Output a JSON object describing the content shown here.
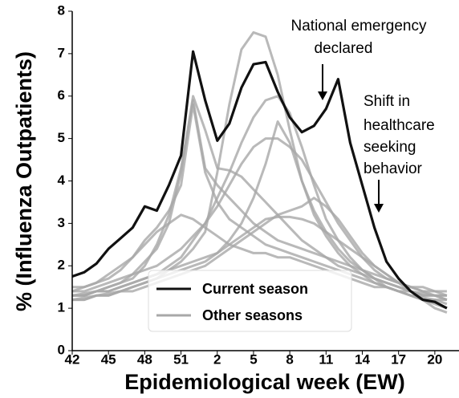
{
  "chart_data": {
    "type": "line",
    "x_label": "Epidemiological week (EW)",
    "y_label": "% (Influenza Outpatients)",
    "categories": [
      "42",
      null,
      null,
      "45",
      null,
      null,
      "48",
      null,
      null,
      "51",
      null,
      null,
      "2",
      null,
      null,
      "5",
      null,
      null,
      "8",
      null,
      null,
      "11",
      null,
      null,
      "14",
      null,
      null,
      "17",
      null,
      null,
      "20",
      null
    ],
    "ylim": [
      0,
      8
    ],
    "yticks": [
      0,
      1,
      2,
      3,
      4,
      5,
      6,
      7,
      8
    ],
    "series": [
      {
        "name": "Current season",
        "color": "#111111",
        "values": [
          1.75,
          1.85,
          2.05,
          2.4,
          2.65,
          2.9,
          3.4,
          3.3,
          3.9,
          4.6,
          7.05,
          5.9,
          4.95,
          5.35,
          6.2,
          6.75,
          6.8,
          6.1,
          5.5,
          5.15,
          5.3,
          5.7,
          6.4,
          4.9,
          3.9,
          2.9,
          2.1,
          1.7,
          1.4,
          1.2,
          1.15,
          1.0
        ]
      }
    ],
    "other_seasons": {
      "name": "Other seasons",
      "color": "#a8a8a8",
      "series": [
        {
          "values": [
            1.3,
            1.35,
            1.4,
            1.5,
            1.6,
            1.8,
            2.1,
            2.4,
            3.0,
            4.2,
            6.0,
            5.2,
            4.3,
            4.25,
            4.1,
            3.8,
            3.5,
            3.2,
            2.9,
            2.6,
            2.4,
            2.2,
            2.0,
            1.9,
            1.8,
            1.7,
            1.6,
            1.5,
            1.4,
            1.35,
            1.3,
            1.3
          ]
        },
        {
          "values": [
            1.2,
            1.25,
            1.3,
            1.35,
            1.4,
            1.5,
            1.6,
            1.7,
            1.9,
            2.1,
            2.4,
            2.8,
            4.2,
            5.8,
            7.1,
            7.5,
            7.4,
            6.5,
            5.2,
            4.0,
            3.2,
            2.7,
            2.3,
            2.0,
            1.8,
            1.6,
            1.5,
            1.4,
            1.3,
            1.25,
            1.2,
            1.2
          ]
        },
        {
          "values": [
            1.3,
            1.3,
            1.4,
            1.4,
            1.5,
            1.6,
            1.7,
            1.8,
            2.0,
            2.2,
            2.6,
            3.0,
            3.6,
            4.2,
            4.9,
            5.5,
            5.9,
            6.0,
            5.6,
            4.8,
            3.9,
            3.1,
            2.6,
            2.2,
            1.9,
            1.7,
            1.6,
            1.5,
            1.4,
            1.3,
            1.3,
            1.2
          ]
        },
        {
          "values": [
            1.4,
            1.4,
            1.5,
            1.6,
            1.7,
            1.8,
            1.9,
            2.0,
            2.2,
            2.4,
            2.7,
            3.0,
            3.4,
            3.9,
            4.4,
            4.8,
            5.0,
            5.0,
            4.8,
            4.5,
            4.0,
            3.5,
            3.0,
            2.6,
            2.2,
            1.9,
            1.7,
            1.6,
            1.5,
            1.4,
            1.4,
            1.3
          ]
        },
        {
          "values": [
            1.3,
            1.3,
            1.4,
            1.5,
            1.6,
            1.7,
            2.0,
            2.5,
            3.2,
            4.3,
            5.9,
            4.3,
            3.9,
            3.6,
            3.3,
            3.0,
            2.8,
            2.6,
            2.5,
            2.4,
            2.3,
            2.2,
            2.1,
            2.0,
            1.9,
            1.8,
            1.7,
            1.6,
            1.5,
            1.5,
            1.4,
            1.4
          ]
        },
        {
          "values": [
            1.2,
            1.2,
            1.3,
            1.3,
            1.4,
            1.4,
            1.5,
            1.6,
            1.7,
            1.8,
            1.9,
            2.0,
            2.2,
            2.4,
            2.6,
            2.8,
            3.0,
            3.2,
            3.3,
            3.4,
            3.6,
            3.4,
            3.1,
            2.7,
            2.3,
            2.0,
            1.8,
            1.6,
            1.5,
            1.4,
            1.3,
            1.3
          ]
        },
        {
          "values": [
            1.4,
            1.5,
            1.6,
            1.8,
            2.0,
            2.2,
            2.5,
            2.8,
            3.0,
            3.2,
            3.1,
            2.9,
            2.7,
            2.5,
            2.4,
            2.3,
            2.3,
            2.2,
            2.2,
            2.1,
            2.0,
            1.9,
            1.8,
            1.7,
            1.6,
            1.5,
            1.5,
            1.4,
            1.4,
            1.3,
            1.3,
            1.2
          ]
        },
        {
          "values": [
            1.2,
            1.2,
            1.3,
            1.3,
            1.4,
            1.5,
            1.6,
            1.7,
            1.8,
            1.9,
            2.0,
            2.1,
            2.3,
            2.6,
            3.0,
            3.6,
            4.4,
            5.4,
            4.9,
            4.0,
            3.3,
            2.8,
            2.4,
            2.1,
            1.9,
            1.7,
            1.5,
            1.4,
            1.3,
            1.2,
            1.2,
            1.1
          ]
        },
        {
          "values": [
            1.3,
            1.3,
            1.4,
            1.4,
            1.5,
            1.6,
            1.7,
            1.8,
            1.9,
            2.0,
            2.1,
            2.2,
            2.3,
            2.5,
            2.7,
            2.9,
            3.1,
            3.15,
            3.15,
            3.1,
            3.0,
            2.8,
            2.6,
            2.4,
            2.2,
            2.0,
            1.8,
            1.6,
            1.4,
            1.2,
            1.0,
            0.9
          ]
        },
        {
          "values": [
            1.5,
            1.5,
            1.6,
            1.7,
            1.9,
            2.2,
            2.6,
            2.9,
            3.3,
            3.9,
            5.8,
            4.2,
            3.5,
            3.1,
            2.9,
            2.7,
            2.5,
            2.4,
            2.3,
            2.2,
            2.1,
            2.0,
            1.9,
            1.8,
            1.7,
            1.6,
            1.5,
            1.4,
            1.3,
            1.2,
            1.1,
            1.0
          ]
        }
      ]
    },
    "annotations": [
      {
        "lines": [
          "National emergency",
          "declared"
        ]
      },
      {
        "lines": [
          "Shift in",
          "healthcare",
          "seeking",
          "behavior"
        ]
      }
    ]
  }
}
